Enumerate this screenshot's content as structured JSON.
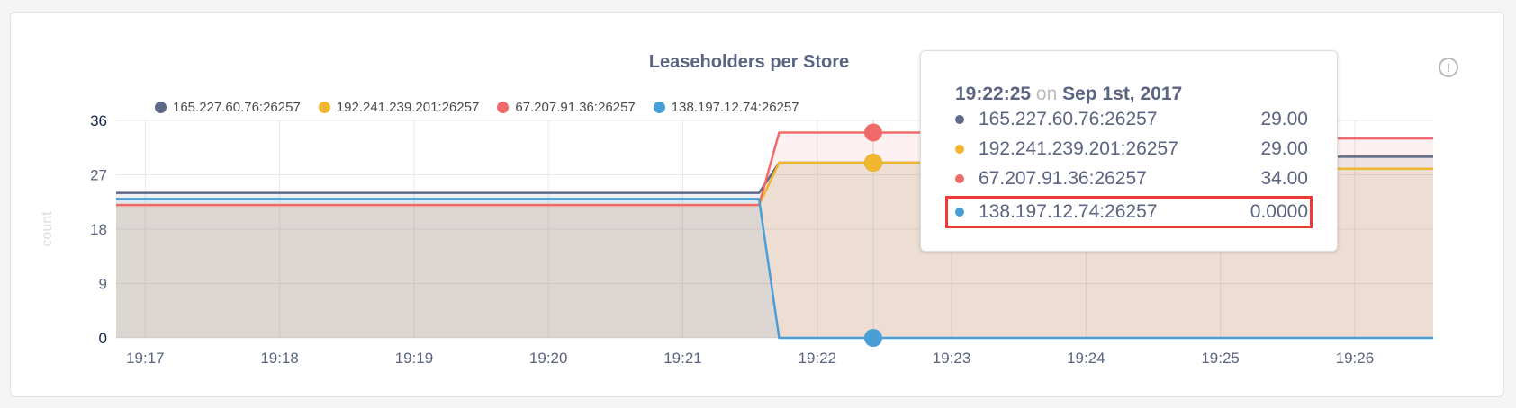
{
  "chart_data": {
    "type": "area",
    "title": "Leaseholders per Store",
    "ylabel": "count",
    "xlabel": "",
    "ylim": [
      0,
      36
    ],
    "yticks": [
      "0",
      "9",
      "18",
      "27",
      "36"
    ],
    "xlim": [
      "19:16:47",
      "19:26:35"
    ],
    "xticks": [
      "19:17",
      "19:18",
      "19:19",
      "19:20",
      "19:21",
      "19:22",
      "19:23",
      "19:24",
      "19:25",
      "19:26"
    ],
    "grid": true,
    "legend_position": "top",
    "series": [
      {
        "name": "165.227.60.76:26257",
        "color": "#5f6a88",
        "points": [
          [
            "19:16:47",
            24
          ],
          [
            "19:21:34",
            24
          ],
          [
            "19:21:43",
            29
          ],
          [
            "19:24:55",
            29
          ],
          [
            "19:25:00",
            30
          ],
          [
            "19:26:35",
            30
          ]
        ]
      },
      {
        "name": "192.241.239.201:26257",
        "color": "#f0b62e",
        "points": [
          [
            "19:16:47",
            22
          ],
          [
            "19:21:34",
            22
          ],
          [
            "19:21:43",
            29
          ],
          [
            "19:24:55",
            29
          ],
          [
            "19:25:00",
            28
          ],
          [
            "19:26:35",
            28
          ]
        ]
      },
      {
        "name": "67.207.91.36:26257",
        "color": "#f06a6a",
        "points": [
          [
            "19:16:47",
            22
          ],
          [
            "19:21:34",
            22
          ],
          [
            "19:21:43",
            34
          ],
          [
            "19:24:55",
            34
          ],
          [
            "19:25:00",
            33
          ],
          [
            "19:26:35",
            33
          ]
        ]
      },
      {
        "name": "138.197.12.74:26257",
        "color": "#4a9ed6",
        "points": [
          [
            "19:16:47",
            23
          ],
          [
            "19:21:34",
            23
          ],
          [
            "19:21:43",
            0
          ],
          [
            "19:26:35",
            0
          ]
        ]
      }
    ],
    "hover_time": "19:22:25"
  },
  "tooltip": {
    "time": "19:22:25",
    "on": "on",
    "date": "Sep 1st, 2017",
    "rows": [
      {
        "name": "165.227.60.76:26257",
        "value": "29.00",
        "color": "#5f6a88"
      },
      {
        "name": "192.241.239.201:26257",
        "value": "29.00",
        "color": "#f0b62e"
      },
      {
        "name": "67.207.91.36:26257",
        "value": "34.00",
        "color": "#f06a6a"
      },
      {
        "name": "138.197.12.74:26257",
        "value": "0.0000",
        "color": "#4a9ed6",
        "highlighted": true
      }
    ]
  },
  "info_icon": "info-circle-icon"
}
